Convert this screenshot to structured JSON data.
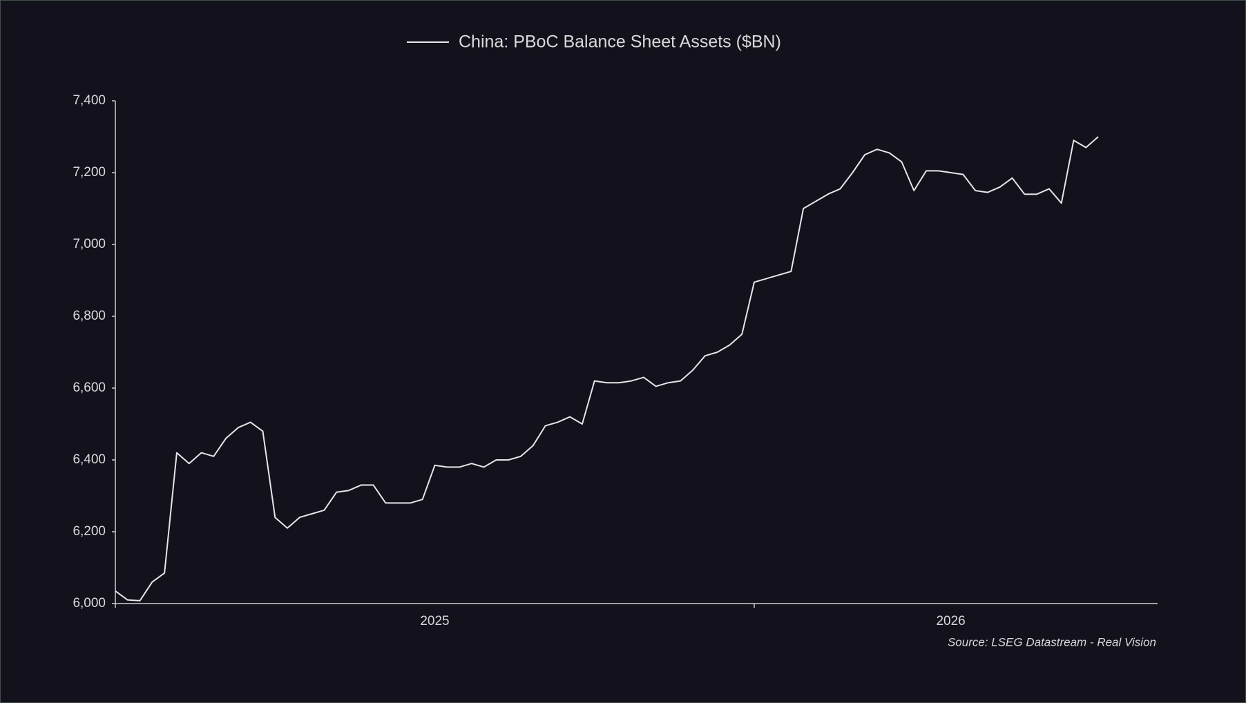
{
  "chart_data": {
    "type": "line",
    "source": "Source: LSEG Datastream - Real Vision",
    "categories": [
      null,
      null,
      null,
      null,
      null,
      null,
      null,
      null,
      null,
      null,
      null,
      null,
      null,
      null,
      null,
      null,
      null,
      null,
      null,
      null,
      null,
      null,
      null,
      null,
      null,
      null,
      "2025",
      null,
      null,
      null,
      null,
      null,
      null,
      null,
      null,
      null,
      null,
      null,
      null,
      null,
      null,
      null,
      null,
      null,
      null,
      null,
      null,
      null,
      null,
      null,
      null,
      null,
      null,
      null,
      null,
      null,
      null,
      null,
      null,
      null,
      null,
      null,
      null,
      null,
      null,
      null,
      null,
      null,
      "2026",
      null,
      null,
      null,
      null,
      null,
      null,
      null,
      null,
      null,
      null,
      null,
      null,
      null,
      null,
      null,
      null
    ],
    "series": [
      {
        "name": "China: PBoC Balance Sheet Assets ($BN)",
        "color": "#e6e6e6",
        "values": [
          6035,
          6010,
          6008,
          6060,
          6085,
          6420,
          6390,
          6420,
          6410,
          6460,
          6490,
          6505,
          6480,
          6240,
          6210,
          6240,
          6250,
          6260,
          6310,
          6315,
          6330,
          6330,
          6280,
          6280,
          6280,
          6290,
          6385,
          6380,
          6380,
          6390,
          6380,
          6400,
          6400,
          6410,
          6440,
          6495,
          6505,
          6520,
          6500,
          6620,
          6615,
          6615,
          6620,
          6630,
          6605,
          6615,
          6620,
          6650,
          6690,
          6700,
          6720,
          6750,
          6895,
          6905,
          6915,
          6925,
          7100,
          7120,
          7140,
          7155,
          7200,
          7250,
          7265,
          7255,
          7230,
          7150,
          7205,
          7205,
          7200,
          7195,
          7150,
          7145,
          7160,
          7185,
          7140,
          7140,
          7155,
          7115,
          7290,
          7270,
          7300,
          null,
          null,
          null,
          null
        ]
      }
    ],
    "ylim": [
      6000,
      7400
    ],
    "yticks": [
      {
        "value": 6000,
        "label": "6,000"
      },
      {
        "value": 6200,
        "label": "6,200"
      },
      {
        "value": 6400,
        "label": "6,400"
      },
      {
        "value": 6600,
        "label": "6,600"
      },
      {
        "value": 6800,
        "label": "6,800"
      },
      {
        "value": 7000,
        "label": "7,000"
      },
      {
        "value": 7200,
        "label": "7,200"
      },
      {
        "value": 7400,
        "label": "7,400"
      }
    ],
    "grid": false
  }
}
